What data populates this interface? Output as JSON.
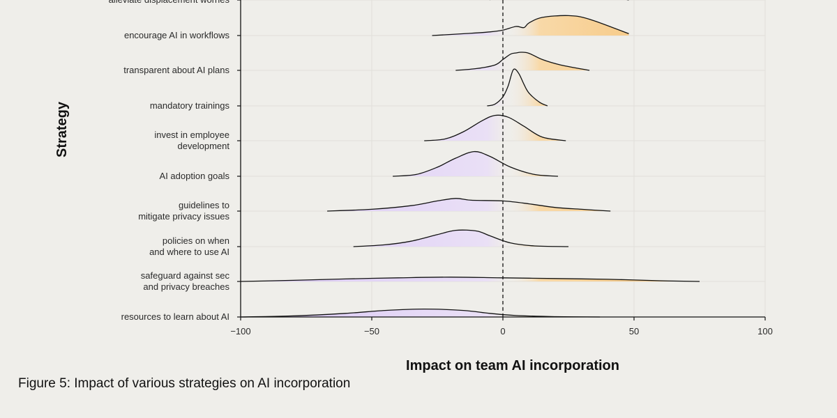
{
  "caption": "Figure 5: Impact of various strategies on AI incorporation",
  "chart_data": {
    "type": "ridgeline",
    "xlabel": "Impact on team AI incorporation",
    "ylabel": "Strategy",
    "xlim": [
      -100,
      100
    ],
    "xticks": [
      -100,
      -50,
      0,
      50,
      100
    ],
    "xtick_labels": [
      "−100",
      "−50",
      "0",
      "50",
      "100"
    ],
    "reference_line_x": 0,
    "colors": {
      "negative": "#d9c6f7",
      "positive": "#f5b860",
      "line": "#111111",
      "grid": "#e0dfda"
    },
    "series": [
      {
        "name": "alleviate displacement worries",
        "x": [
          -5,
          0,
          3,
          5,
          8,
          15,
          25,
          35,
          48
        ],
        "y": [
          0.0,
          0.4,
          0.9,
          1.0,
          0.85,
          0.6,
          0.45,
          0.2,
          0.0
        ]
      },
      {
        "name": "encourage AI in workflows",
        "x": [
          -27,
          -15,
          -5,
          0,
          5,
          8,
          10,
          15,
          25,
          33,
          48
        ],
        "y": [
          0.0,
          0.05,
          0.1,
          0.15,
          0.25,
          0.22,
          0.35,
          0.5,
          0.55,
          0.45,
          0.05
        ]
      },
      {
        "name": "transparent about AI plans",
        "x": [
          -18,
          -10,
          -3,
          0,
          3,
          5,
          7,
          10,
          15,
          22,
          33
        ],
        "y": [
          0.0,
          0.05,
          0.15,
          0.3,
          0.45,
          0.48,
          0.5,
          0.47,
          0.3,
          0.15,
          0.0
        ]
      },
      {
        "name": "mandatory trainings",
        "x": [
          -6,
          -3,
          0,
          2,
          4,
          6,
          8,
          10,
          14,
          17
        ],
        "y": [
          0.0,
          0.05,
          0.25,
          0.55,
          1.0,
          0.9,
          0.6,
          0.35,
          0.1,
          0.0
        ]
      },
      {
        "name": "invest in employee development",
        "x": [
          -30,
          -22,
          -15,
          -8,
          -3,
          2,
          8,
          15,
          24
        ],
        "y": [
          0.0,
          0.05,
          0.25,
          0.55,
          0.7,
          0.65,
          0.4,
          0.1,
          0.0
        ]
      },
      {
        "name": "AI adoption goals",
        "x": [
          -42,
          -33,
          -25,
          -18,
          -11,
          -5,
          3,
          12,
          21
        ],
        "y": [
          0.0,
          0.05,
          0.25,
          0.5,
          0.68,
          0.55,
          0.25,
          0.05,
          0.0
        ]
      },
      {
        "name": "guidelines to mitigate privacy issues",
        "x": [
          -67,
          -50,
          -35,
          -25,
          -18,
          -12,
          0,
          10,
          20,
          30,
          41
        ],
        "y": [
          0.0,
          0.05,
          0.15,
          0.28,
          0.35,
          0.3,
          0.28,
          0.2,
          0.1,
          0.05,
          0.0
        ]
      },
      {
        "name": "policies on when and where to use AI",
        "x": [
          -57,
          -45,
          -35,
          -25,
          -18,
          -10,
          -5,
          3,
          12,
          25
        ],
        "y": [
          0.0,
          0.05,
          0.15,
          0.33,
          0.45,
          0.43,
          0.3,
          0.1,
          0.02,
          0.0
        ]
      },
      {
        "name": "safeguard against sec and privacy breaches",
        "x": [
          -100,
          -80,
          -60,
          -40,
          -20,
          0,
          20,
          40,
          60,
          75
        ],
        "y": [
          0.0,
          0.03,
          0.07,
          0.1,
          0.12,
          0.1,
          0.08,
          0.06,
          0.02,
          0.0
        ]
      },
      {
        "name": "resources to learn about AI",
        "x": [
          -100,
          -80,
          -60,
          -45,
          -30,
          -15,
          -5,
          5,
          20,
          37
        ],
        "y": [
          0.0,
          0.03,
          0.1,
          0.18,
          0.22,
          0.18,
          0.1,
          0.04,
          0.01,
          0.0
        ]
      }
    ],
    "category_labels": [
      [
        "alleviate displacement worries"
      ],
      [
        "encourage AI in workflows"
      ],
      [
        "transparent about AI plans"
      ],
      [
        "mandatory trainings"
      ],
      [
        "invest in employee",
        "development"
      ],
      [
        "AI adoption goals"
      ],
      [
        "guidelines to",
        "mitigate privacy issues"
      ],
      [
        "policies on when",
        "and where to use AI"
      ],
      [
        "safeguard against sec",
        "and privacy breaches"
      ],
      [
        "resources to learn about AI"
      ]
    ]
  }
}
